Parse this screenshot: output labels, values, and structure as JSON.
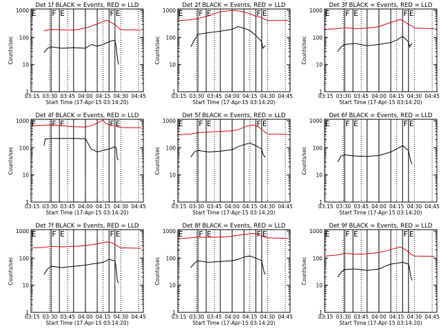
{
  "colors": {
    "events": "#000000",
    "lld": "#dd0000",
    "background": "#ffffff"
  },
  "chart_data": [
    {
      "type": "line",
      "title": "Det 1f BLACK = Events, RED = LLD",
      "xlabel": "Start Time (17-Apr-15 03:14:20)",
      "ylabel": "Counts/sec",
      "yscale": "log",
      "ylim": [
        1,
        1000
      ],
      "x_ticks": [
        "03:15",
        "03:30",
        "03:45",
        "04:00",
        "04:15",
        "04:30",
        "04:45"
      ],
      "y_ticks": [
        "1",
        "10",
        "100",
        "1000"
      ],
      "series": [
        {
          "name": "Events",
          "color": "#000000",
          "x": [
            "03:25",
            "03:28",
            "03:31",
            "03:40",
            "03:50",
            "04:00",
            "04:05",
            "04:10",
            "04:15",
            "04:20",
            "04:25",
            "04:26",
            "04:27",
            "04:28"
          ],
          "values": [
            28,
            40,
            45,
            40,
            42,
            40,
            55,
            48,
            55,
            70,
            80,
            48,
            18,
            10
          ]
        },
        {
          "name": "LLD",
          "color": "#dd0000",
          "x": [
            "03:25",
            "03:31",
            "03:40",
            "03:50",
            "04:00",
            "04:05",
            "04:12",
            "04:18",
            "04:22",
            "04:25",
            "04:27",
            "04:30",
            "04:40",
            "04:47"
          ],
          "values": [
            175,
            200,
            190,
            185,
            220,
            260,
            340,
            430,
            350,
            300,
            250,
            190,
            190,
            185
          ]
        }
      ],
      "event_lines": [
        "03:31",
        "03:38",
        "03:50",
        "04:00",
        "04:10",
        "04:20",
        "04:25"
      ],
      "event_labels": [
        "F",
        "E",
        "F",
        "E"
      ]
    },
    {
      "type": "line",
      "title": "Det 2f BLACK = Events, RED = LLD",
      "xlabel": "Start Time (17-Apr-15 03:14:20)",
      "ylabel": "Counts/sec",
      "yscale": "log",
      "ylim": [
        1,
        1000
      ],
      "x_ticks": [
        "03:15",
        "03:30",
        "03:45",
        "04:00",
        "04:15",
        "04:30",
        "04:45"
      ],
      "y_ticks": [
        "1",
        "10",
        "100",
        "1000"
      ],
      "series": [
        {
          "name": "Events",
          "color": "#000000",
          "x": [
            "03:25",
            "03:28",
            "03:31",
            "03:40",
            "03:50",
            "04:00",
            "04:05",
            "04:10",
            "04:15",
            "04:20",
            "04:25",
            "04:26",
            "04:27",
            "04:28"
          ],
          "values": [
            45,
            80,
            130,
            150,
            170,
            200,
            250,
            220,
            180,
            120,
            70,
            40,
            45,
            50
          ]
        },
        {
          "name": "LLD",
          "color": "#dd0000",
          "x": [
            "03:15",
            "03:25",
            "03:31",
            "03:40",
            "03:45",
            "03:50",
            "04:00",
            "04:05",
            "04:10",
            "04:15",
            "04:20",
            "04:25",
            "04:27",
            "04:30",
            "04:47"
          ],
          "values": [
            420,
            450,
            500,
            620,
            750,
            880,
            1000,
            950,
            850,
            750,
            600,
            550,
            480,
            420,
            420
          ]
        }
      ],
      "event_lines": [
        "03:31",
        "03:38",
        "03:50",
        "04:00",
        "04:10",
        "04:20",
        "04:25"
      ],
      "event_labels": [
        "F",
        "E",
        "F",
        "E"
      ]
    },
    {
      "type": "line",
      "title": "Det 3f BLACK = Events, RED = LLD",
      "xlabel": "Start Time (17-Apr-15 03:14:20)",
      "ylabel": "Counts/sec",
      "yscale": "log",
      "ylim": [
        1,
        1000
      ],
      "x_ticks": [
        "03:15",
        "03:30",
        "03:45",
        "04:00",
        "04:15",
        "04:30",
        "04:45"
      ],
      "y_ticks": [
        "1",
        "10",
        "100",
        "1000"
      ],
      "series": [
        {
          "name": "Events",
          "color": "#000000",
          "x": [
            "03:25",
            "03:28",
            "03:31",
            "03:40",
            "03:50",
            "04:00",
            "04:05",
            "04:10",
            "04:15",
            "04:20",
            "04:25",
            "04:26",
            "04:27",
            "04:28"
          ],
          "values": [
            30,
            45,
            55,
            60,
            50,
            55,
            60,
            65,
            80,
            110,
            70,
            45,
            55,
            60
          ]
        },
        {
          "name": "LLD",
          "color": "#dd0000",
          "x": [
            "03:15",
            "03:25",
            "03:31",
            "03:40",
            "03:50",
            "04:00",
            "04:05",
            "04:12",
            "04:18",
            "04:22",
            "04:25",
            "04:27",
            "04:30",
            "04:47"
          ],
          "values": [
            200,
            210,
            230,
            210,
            220,
            250,
            300,
            380,
            460,
            380,
            300,
            280,
            220,
            210
          ]
        }
      ],
      "event_lines": [
        "03:31",
        "03:38",
        "03:50",
        "04:00",
        "04:10",
        "04:20",
        "04:25"
      ],
      "event_labels": [
        "F",
        "E",
        "F",
        "E"
      ]
    },
    {
      "type": "line",
      "title": "Det 4f BLACK = Events, RED = LLD",
      "xlabel": "Start Time (17-Apr-15 03:14:20)",
      "ylabel": "Counts/sec",
      "yscale": "log",
      "ylim": [
        1,
        1000
      ],
      "x_ticks": [
        "03:15",
        "03:30",
        "03:45",
        "04:00",
        "04:15",
        "04:30",
        "04:45"
      ],
      "y_ticks": [
        "1",
        "10",
        "100",
        "1000"
      ],
      "series": [
        {
          "name": "Events",
          "color": "#000000",
          "x": [
            "03:25",
            "03:26",
            "03:30",
            "03:40",
            "03:50",
            "04:00",
            "04:05",
            "04:10",
            "04:15",
            "04:20",
            "04:25",
            "04:26",
            "04:27",
            "04:28"
          ],
          "values": [
            120,
            210,
            220,
            220,
            220,
            215,
            90,
            70,
            80,
            90,
            110,
            100,
            40,
            35
          ]
        },
        {
          "name": "LLD",
          "color": "#dd0000",
          "x": [
            "03:15",
            "03:25",
            "03:31",
            "03:40",
            "03:50",
            "04:00",
            "04:05",
            "04:12",
            "04:15",
            "04:17",
            "04:22",
            "04:25",
            "04:27",
            "04:30",
            "04:47"
          ],
          "values": [
            640,
            680,
            700,
            650,
            600,
            580,
            650,
            900,
            1050,
            800,
            680,
            650,
            600,
            560,
            550
          ]
        }
      ],
      "event_lines": [
        "03:31",
        "03:38",
        "03:50",
        "04:00",
        "04:10",
        "04:20",
        "04:25"
      ],
      "event_labels": [
        "F",
        "E",
        "F",
        "E"
      ]
    },
    {
      "type": "line",
      "title": "Det 5f BLACK = Events, RED = LLD",
      "xlabel": "Start Time (17-Apr-15 03:14:20)",
      "ylabel": "Counts/sec",
      "yscale": "log",
      "ylim": [
        1,
        1000
      ],
      "x_ticks": [
        "03:15",
        "03:30",
        "03:45",
        "04:00",
        "04:15",
        "04:30",
        "04:45"
      ],
      "y_ticks": [
        "1",
        "10",
        "100",
        "1000"
      ],
      "series": [
        {
          "name": "Events",
          "color": "#000000",
          "x": [
            "03:25",
            "03:28",
            "03:31",
            "03:40",
            "03:50",
            "04:00",
            "04:05",
            "04:10",
            "04:15",
            "04:20",
            "04:25",
            "04:26",
            "04:27",
            "04:28"
          ],
          "values": [
            45,
            70,
            80,
            70,
            75,
            85,
            110,
            130,
            150,
            120,
            90,
            60,
            50,
            45
          ]
        },
        {
          "name": "LLD",
          "color": "#dd0000",
          "x": [
            "03:15",
            "03:25",
            "03:31",
            "03:40",
            "03:50",
            "04:00",
            "04:05",
            "04:12",
            "04:18",
            "04:22",
            "04:25",
            "04:27",
            "04:30",
            "04:47"
          ],
          "values": [
            300,
            320,
            360,
            380,
            400,
            420,
            460,
            620,
            700,
            600,
            480,
            400,
            320,
            310
          ]
        }
      ],
      "event_lines": [
        "03:31",
        "03:38",
        "03:50",
        "04:00",
        "04:10",
        "04:20",
        "04:25"
      ],
      "event_labels": [
        "F",
        "E",
        "F",
        "E"
      ]
    },
    {
      "type": "line",
      "title": "Det 6f BLACK = Events, RED = LLD",
      "xlabel": "Start Time (17-Apr-15 03:14:20)",
      "ylabel": "Counts/sec",
      "yscale": "log",
      "ylim": [
        1,
        1000
      ],
      "x_ticks": [
        "03:15",
        "03:30",
        "03:45",
        "04:00",
        "04:15",
        "04:30",
        "04:45"
      ],
      "y_ticks": [
        "1",
        "10",
        "100",
        "1000"
      ],
      "series": [
        {
          "name": "Events",
          "color": "#000000",
          "x": [
            "03:25",
            "03:28",
            "03:31",
            "03:40",
            "03:50",
            "04:00",
            "04:05",
            "04:10",
            "04:15",
            "04:20",
            "04:25",
            "04:26",
            "04:27",
            "04:28"
          ],
          "values": [
            30,
            50,
            55,
            50,
            48,
            52,
            60,
            70,
            90,
            120,
            80,
            50,
            30,
            25
          ]
        }
      ],
      "event_lines": [
        "03:31",
        "03:38",
        "03:50",
        "04:00",
        "04:10",
        "04:20",
        "04:25"
      ],
      "event_labels": [
        "F",
        "E",
        "F",
        "E"
      ]
    },
    {
      "type": "line",
      "title": "Det 7f BLACK = Events, RED = LLD",
      "xlabel": "Start Time (17-Apr-15 03:14:20)",
      "ylabel": "Counts/sec",
      "yscale": "log",
      "ylim": [
        1,
        1000
      ],
      "x_ticks": [
        "03:15",
        "03:30",
        "03:45",
        "04:00",
        "04:15",
        "04:30",
        "04:45"
      ],
      "y_ticks": [
        "1",
        "10",
        "100",
        "1000"
      ],
      "series": [
        {
          "name": "Events",
          "color": "#000000",
          "x": [
            "03:25",
            "03:28",
            "03:31",
            "03:40",
            "03:50",
            "04:00",
            "04:05",
            "04:10",
            "04:15",
            "04:20",
            "04:25",
            "04:26",
            "04:27",
            "04:28"
          ],
          "values": [
            25,
            40,
            50,
            45,
            50,
            55,
            60,
            65,
            70,
            90,
            80,
            45,
            15,
            12
          ]
        },
        {
          "name": "LLD",
          "color": "#dd0000",
          "x": [
            "03:15",
            "03:25",
            "03:31",
            "03:40",
            "03:50",
            "04:00",
            "04:05",
            "04:12",
            "04:18",
            "04:22",
            "04:25",
            "04:27",
            "04:30",
            "04:47"
          ],
          "values": [
            240,
            250,
            270,
            260,
            270,
            290,
            310,
            350,
            400,
            370,
            320,
            280,
            240,
            230
          ]
        }
      ],
      "event_lines": [
        "03:31",
        "03:38",
        "03:50",
        "04:00",
        "04:10",
        "04:20",
        "04:25"
      ],
      "event_labels": [
        "F",
        "E",
        "F",
        "E"
      ]
    },
    {
      "type": "line",
      "title": "Det 8f BLACK = Events, RED = LLD",
      "xlabel": "Start Time (17-Apr-15 03:14:20)",
      "ylabel": "Counts/sec",
      "yscale": "log",
      "ylim": [
        1,
        1000
      ],
      "x_ticks": [
        "03:15",
        "03:30",
        "03:45",
        "04:00",
        "04:15",
        "04:30",
        "04:45"
      ],
      "y_ticks": [
        "1",
        "10",
        "100",
        "1000"
      ],
      "series": [
        {
          "name": "Events",
          "color": "#000000",
          "x": [
            "03:25",
            "03:28",
            "03:31",
            "03:40",
            "03:50",
            "04:00",
            "04:05",
            "04:10",
            "04:15",
            "04:20",
            "04:25",
            "04:26",
            "04:27",
            "04:28"
          ],
          "values": [
            45,
            65,
            80,
            70,
            75,
            80,
            90,
            110,
            120,
            100,
            80,
            50,
            30,
            25
          ]
        },
        {
          "name": "LLD",
          "color": "#dd0000",
          "x": [
            "03:15",
            "03:25",
            "03:31",
            "03:40",
            "03:50",
            "04:00",
            "04:05",
            "04:12",
            "04:18",
            "04:22",
            "04:25",
            "04:27",
            "04:30",
            "04:47"
          ],
          "values": [
            520,
            560,
            600,
            580,
            600,
            640,
            700,
            760,
            820,
            740,
            650,
            600,
            560,
            530
          ]
        }
      ],
      "event_lines": [
        "03:31",
        "03:38",
        "03:50",
        "04:00",
        "04:10",
        "04:20",
        "04:25"
      ],
      "event_labels": [
        "F",
        "E",
        "F",
        "E"
      ]
    },
    {
      "type": "line",
      "title": "Det 9f BLACK = Events, RED = LLD",
      "xlabel": "Start Time (17-Apr-15 03:14:20)",
      "ylabel": "Counts/sec",
      "yscale": "log",
      "ylim": [
        1,
        1000
      ],
      "x_ticks": [
        "03:15",
        "03:30",
        "03:45",
        "04:00",
        "04:15",
        "04:30",
        "04:45"
      ],
      "y_ticks": [
        "1",
        "10",
        "100",
        "1000"
      ],
      "series": [
        {
          "name": "Events",
          "color": "#000000",
          "x": [
            "03:25",
            "03:28",
            "03:31",
            "03:40",
            "03:50",
            "04:00",
            "04:05",
            "04:10",
            "04:15",
            "04:20",
            "04:25",
            "04:26",
            "04:27",
            "04:28"
          ],
          "values": [
            20,
            30,
            38,
            40,
            35,
            40,
            50,
            60,
            65,
            70,
            60,
            40,
            20,
            15
          ]
        },
        {
          "name": "LLD",
          "color": "#dd0000",
          "x": [
            "03:15",
            "03:25",
            "03:31",
            "03:40",
            "03:50",
            "04:00",
            "04:05",
            "04:12",
            "04:18",
            "04:22",
            "04:25",
            "04:27",
            "04:30",
            "04:47"
          ],
          "values": [
            120,
            130,
            150,
            140,
            145,
            160,
            180,
            220,
            260,
            210,
            170,
            140,
            120,
            115
          ]
        }
      ],
      "event_lines": [
        "03:31",
        "03:38",
        "03:50",
        "04:00",
        "04:10",
        "04:20",
        "04:25"
      ],
      "event_labels": [
        "F",
        "E",
        "F",
        "E"
      ]
    }
  ]
}
